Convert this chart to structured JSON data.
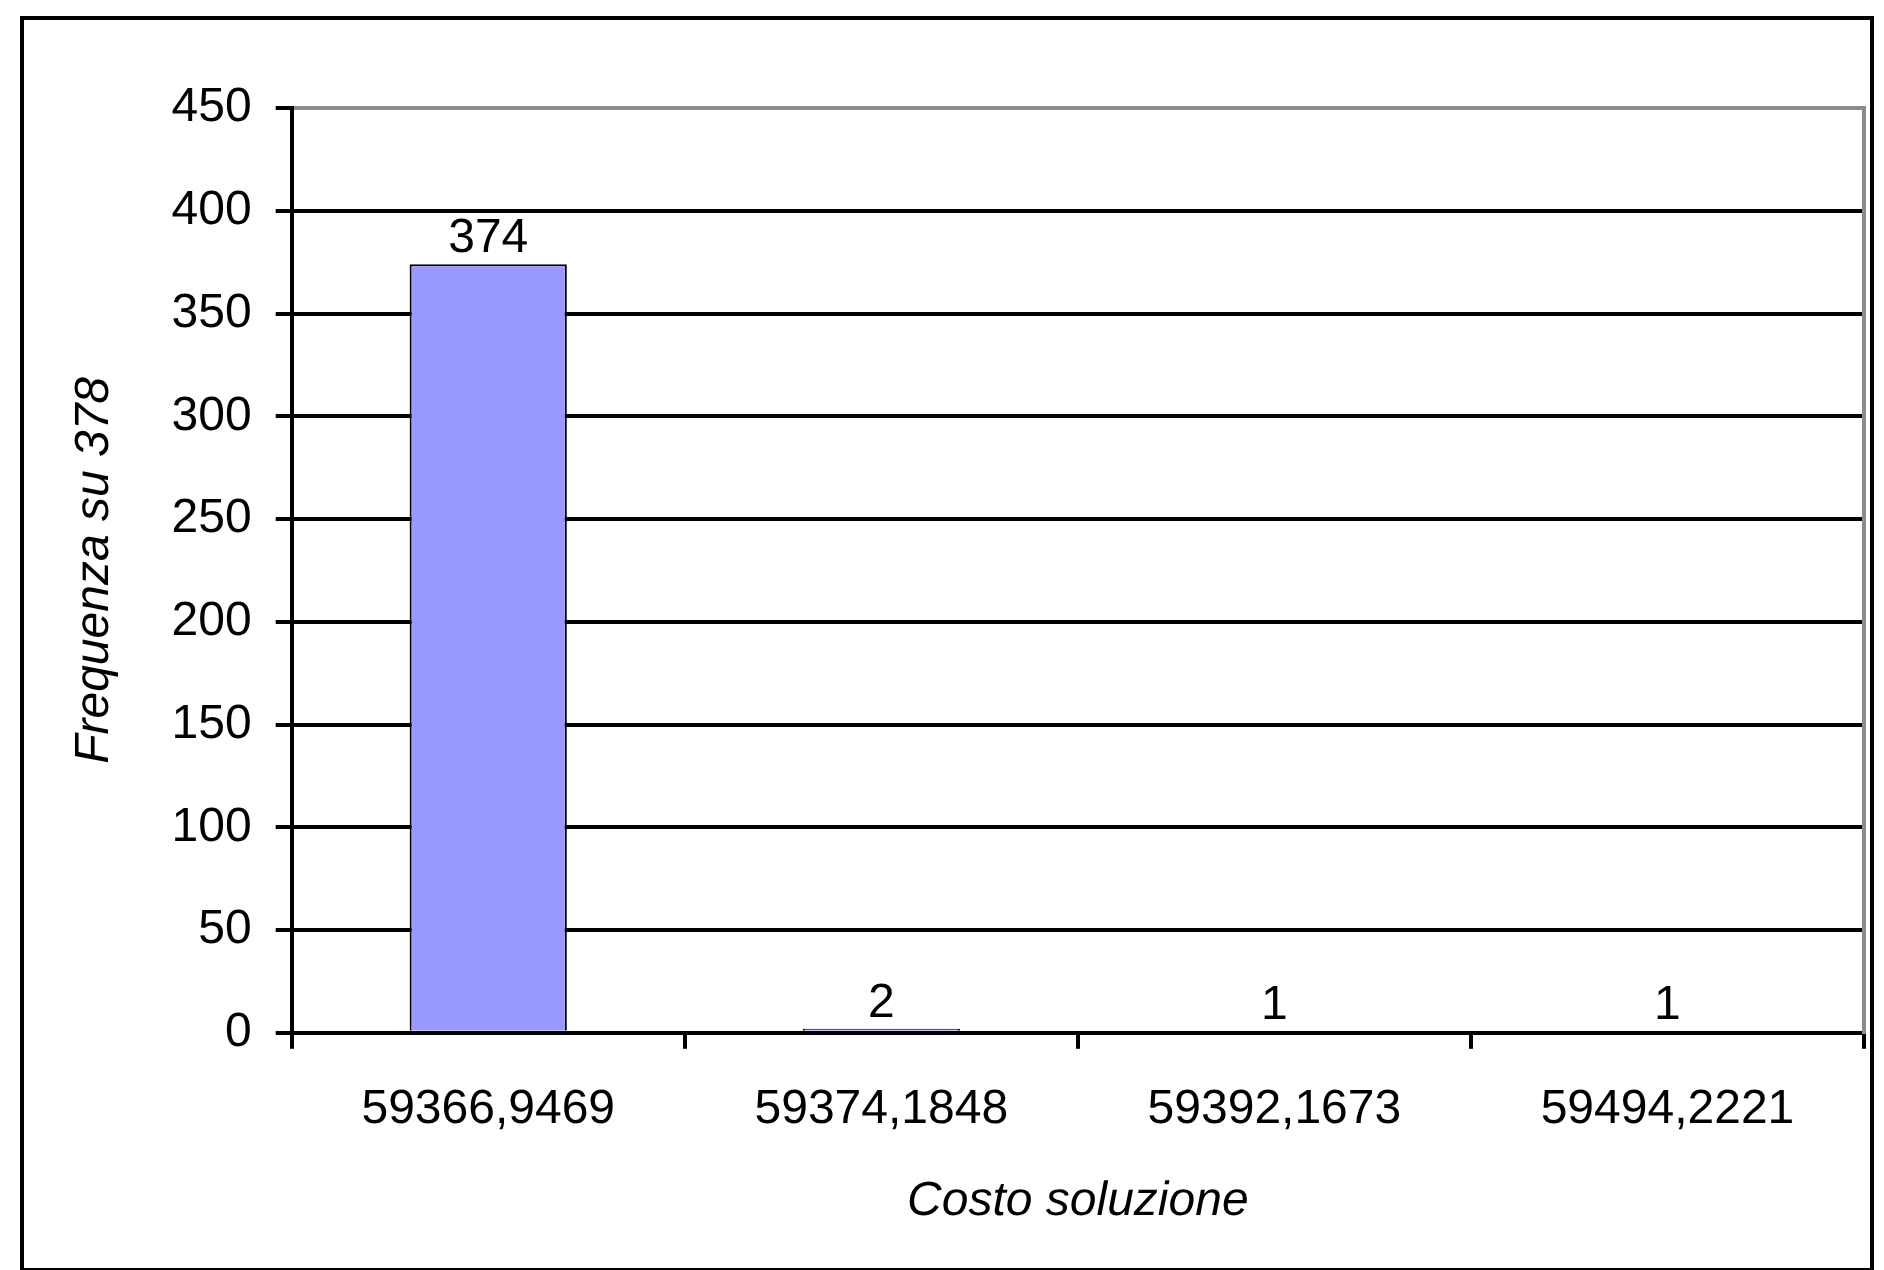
{
  "chart_data": {
    "type": "bar",
    "xlabel": "Costo soluzione",
    "ylabel": "Frequenza su 378",
    "categories": [
      "59366,9469",
      "59374,1848",
      "59392,1673",
      "59494,2221"
    ],
    "values": [
      374,
      2,
      1,
      1
    ],
    "color": "#9999ff",
    "ylim": [
      0,
      450
    ],
    "yticks": [
      0,
      50,
      100,
      150,
      200,
      250,
      300,
      350,
      400,
      450
    ],
    "grid": "y",
    "data_labels": true
  }
}
